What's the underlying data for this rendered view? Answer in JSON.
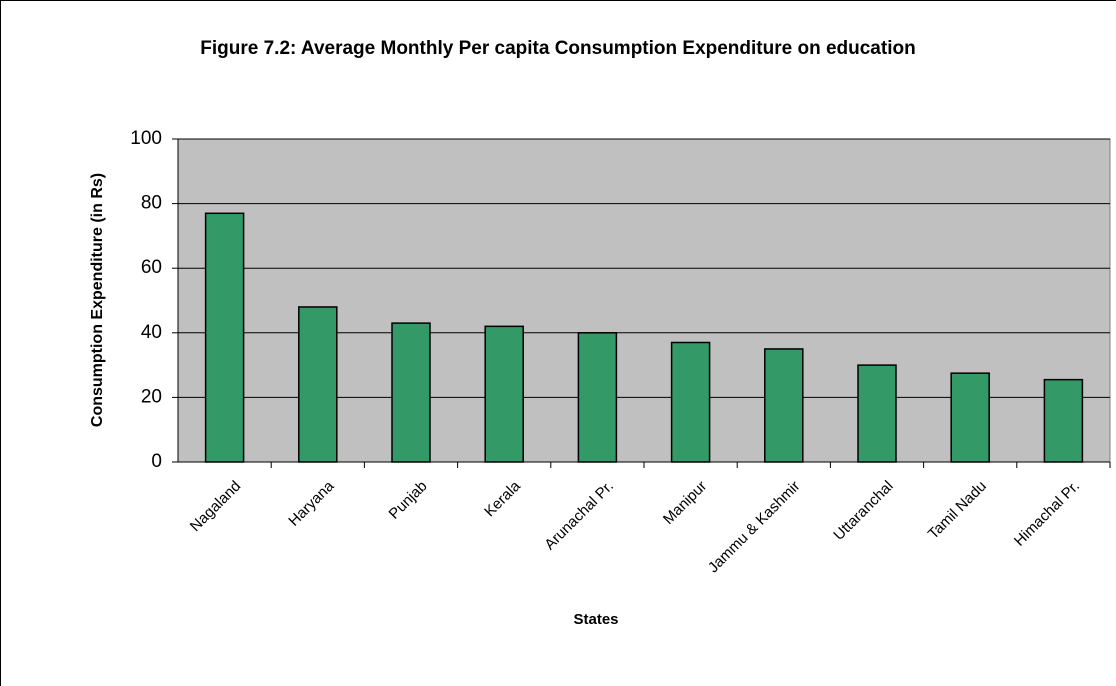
{
  "chart_data": {
    "type": "bar",
    "title": "Figure 7.2: Average Monthly Per capita Consumption Expenditure on education",
    "x_label": "States",
    "y_label": "Consumption Expenditure (in Rs)",
    "categories": [
      "Nagaland",
      "Haryana",
      "Punjab",
      "Kerala",
      "Arunachal Pr.",
      "Manipur",
      "Jammu & Kashmir",
      "Uttaranchal",
      "Tamil Nadu",
      "Himachal Pr."
    ],
    "values": [
      77,
      48,
      43,
      42,
      40,
      37,
      35,
      30,
      27.5,
      25.5
    ],
    "color": "#339966",
    "ylim": [
      0,
      100
    ],
    "yticks": [
      0,
      20,
      40,
      60,
      80,
      100
    ],
    "grid": true
  }
}
